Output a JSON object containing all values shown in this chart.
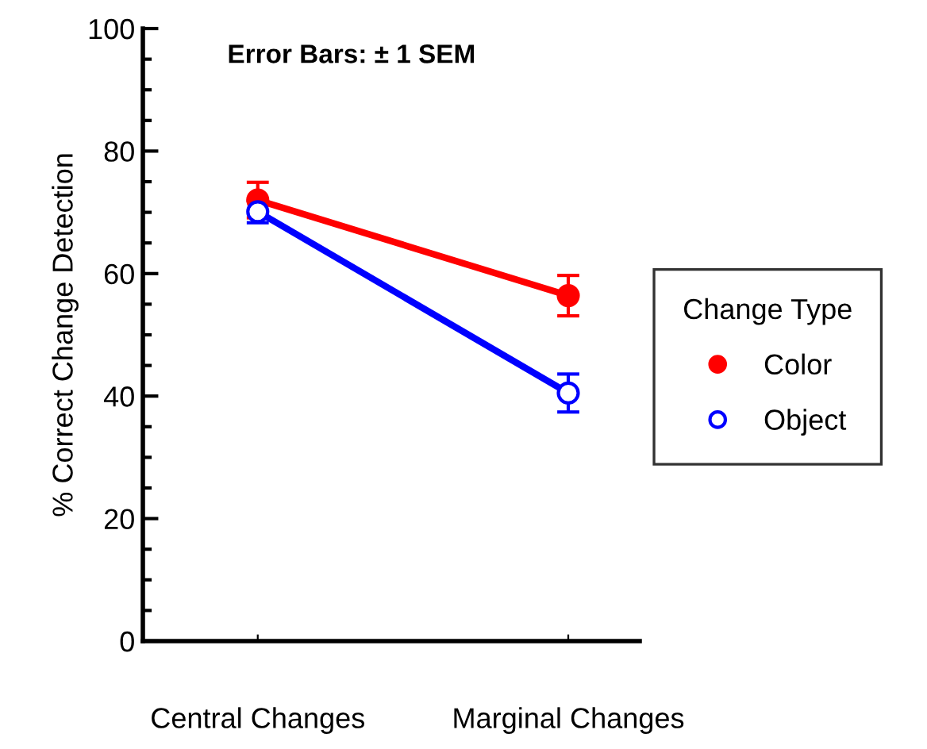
{
  "chart_data": {
    "type": "line",
    "ylabel": "% Correct Change Detection",
    "legend_title": "Change Type",
    "annotations": [
      "Error Bars: ± 1 SEM"
    ],
    "categories": [
      "Central Changes",
      "Marginal Changes"
    ],
    "series": [
      {
        "name": "Color",
        "color": "#ff0000",
        "values": [
          72.0,
          56.4
        ],
        "errors": [
          2.9,
          3.3
        ],
        "marker": "circle"
      },
      {
        "name": "Object",
        "color": "#0000ff",
        "values": [
          70.1,
          40.5
        ],
        "errors": [
          1.8,
          3.1
        ],
        "marker": "circle"
      }
    ],
    "ylim": [
      0,
      100
    ],
    "yticks": [
      0,
      20,
      40,
      60,
      80,
      100
    ],
    "grid": false,
    "legend": "right"
  }
}
